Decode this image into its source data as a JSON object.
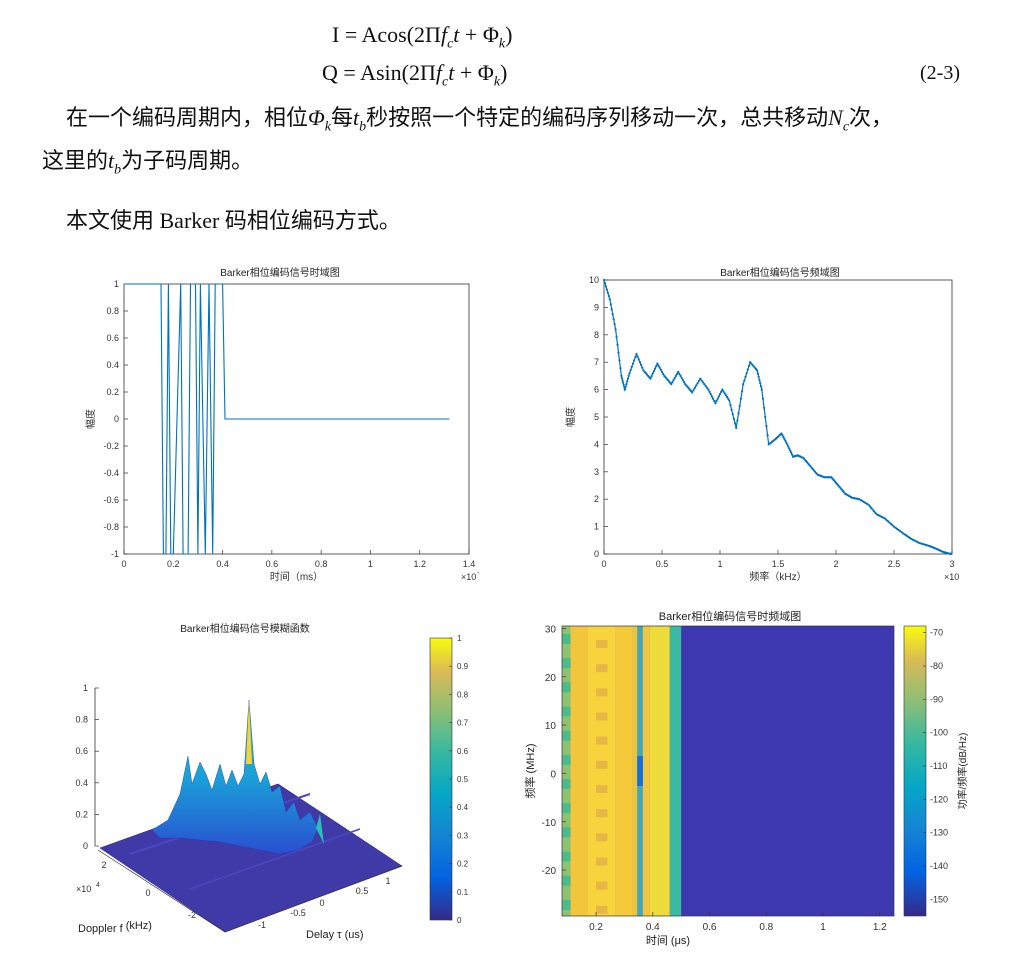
{
  "equations": {
    "i_line": "I = Acos(2Πf_c t + Φ_k)",
    "q_line": "Q = Asin(2Πf_c t + Φ_k)",
    "eq_number": "(2-3)"
  },
  "paragraph1": {
    "a": "在一个编码周期内，相位",
    "phi": "Φ",
    "k": "k",
    "b": "每",
    "tb": "t",
    "tb_sub": "b",
    "c": "秒按照一个特定的编码序列移动一次，总共移动",
    "nc": "N",
    "nc_sub": "c",
    "d": "次，",
    "line2_a": "这里的",
    "line2_tb": "t",
    "line2_tb_sub": "b",
    "line2_b": "为子码周期。"
  },
  "paragraph2": "本文使用 Barker 码相位编码方式。",
  "chart_data": [
    {
      "type": "line",
      "title": "Barker相位编码信号时域图",
      "xlabel": "时间（ms）",
      "ylabel": "幅度",
      "x_exponent": "×10",
      "x_exponent_power": "-3",
      "xlim": [
        0,
        1.4
      ],
      "ylim": [
        -1,
        1
      ],
      "xticks": [
        "0",
        "0.2",
        "0.4",
        "0.6",
        "0.8",
        "1",
        "1.2",
        "1.4"
      ],
      "yticks": [
        "-1",
        "-0.8",
        "-0.6",
        "-0.4",
        "-0.2",
        "0",
        "0.2",
        "0.4",
        "0.6",
        "0.8",
        "1"
      ],
      "color": "#0072bd",
      "series": [
        {
          "x": [
            0,
            0.15,
            0.16,
            0.17,
            0.18,
            0.19,
            0.2,
            0.23,
            0.24,
            0.26,
            0.27,
            0.29,
            0.3,
            0.31,
            0.33,
            0.345,
            0.36,
            0.37,
            0.4,
            0.41,
            0.43,
            1.32
          ],
          "y": [
            1,
            1,
            -1,
            -1,
            1,
            -1,
            -1,
            1,
            -1,
            -1,
            1,
            1,
            -1,
            1,
            -1,
            1,
            -1,
            1,
            1,
            0,
            0,
            0
          ]
        }
      ]
    },
    {
      "type": "line",
      "title": "Barker相位编码信号频域图",
      "xlabel": "频率（kHz）",
      "ylabel": "幅度",
      "x_exponent": "×10",
      "x_exponent_power": "4",
      "xlim": [
        0,
        3
      ],
      "ylim": [
        0,
        10
      ],
      "xticks": [
        "0",
        "0.5",
        "1",
        "1.5",
        "2",
        "2.5",
        "3"
      ],
      "yticks": [
        "0",
        "1",
        "2",
        "3",
        "4",
        "5",
        "6",
        "7",
        "8",
        "9",
        "10"
      ],
      "color": "#0072bd",
      "series": [
        {
          "x": [
            0,
            0.05,
            0.1,
            0.15,
            0.18,
            0.22,
            0.28,
            0.34,
            0.4,
            0.46,
            0.52,
            0.58,
            0.64,
            0.7,
            0.76,
            0.83,
            0.9,
            0.96,
            1.02,
            1.08,
            1.14,
            1.2,
            1.26,
            1.32,
            1.36,
            1.42,
            1.48,
            1.53,
            1.58,
            1.63,
            1.67,
            1.72,
            1.78,
            1.84,
            1.9,
            1.96,
            2.02,
            2.08,
            2.14,
            2.2,
            2.28,
            2.35,
            2.42,
            2.5,
            2.58,
            2.65,
            2.72,
            2.8,
            2.86,
            2.92,
            2.97,
            3.0
          ],
          "y": [
            10,
            9.3,
            8.2,
            6.5,
            6.0,
            6.6,
            7.3,
            6.7,
            6.4,
            6.95,
            6.5,
            6.2,
            6.65,
            6.2,
            5.9,
            6.4,
            6.0,
            5.5,
            6.0,
            5.6,
            4.6,
            6.2,
            7.0,
            6.7,
            6.0,
            4.0,
            4.2,
            4.4,
            4.0,
            3.55,
            3.6,
            3.5,
            3.2,
            2.9,
            2.8,
            2.8,
            2.5,
            2.2,
            2.05,
            2.0,
            1.8,
            1.45,
            1.3,
            1.0,
            0.75,
            0.55,
            0.4,
            0.3,
            0.2,
            0.08,
            0.02,
            0
          ]
        }
      ]
    },
    {
      "type": "surface",
      "title": "Barker相位编码信号模糊函数",
      "xlabel": "Doppler f",
      "xlabel_sub": "d",
      "xlabel_unit": " (kHz)",
      "ylabel": "Delay τ (us)",
      "x_exponent": "×10",
      "x_exponent_power": "4",
      "zticks": [
        "0",
        "0.2",
        "0.4",
        "0.6",
        "0.8",
        "1"
      ],
      "doppler_ticks": [
        "2",
        "0",
        "-2"
      ],
      "delay_ticks": [
        "-1",
        "-0.5",
        "0",
        "0.5",
        "1"
      ],
      "colorbar_ticks": [
        "0",
        "0.1",
        "0.2",
        "0.3",
        "0.4",
        "0.5",
        "0.6",
        "0.7",
        "0.8",
        "0.9",
        "1"
      ],
      "peak": 1
    },
    {
      "type": "heatmap",
      "title": "Barker相位编码信号时频域图",
      "xlabel": "时间 (μs)",
      "ylabel": "频率 (MHz)",
      "colorbar_label": "功率/频率(dB/Hz)",
      "xticks": [
        "0.2",
        "0.4",
        "0.6",
        "0.8",
        "1",
        "1.2"
      ],
      "yticks": [
        "30",
        "20",
        "10",
        "0",
        "-10",
        "-20"
      ],
      "colorbar_ticks": [
        "-70",
        "-80",
        "-90",
        "-100",
        "-110",
        "-120",
        "-130",
        "-140",
        "-150"
      ],
      "signal_end_us": 0.5
    }
  ]
}
